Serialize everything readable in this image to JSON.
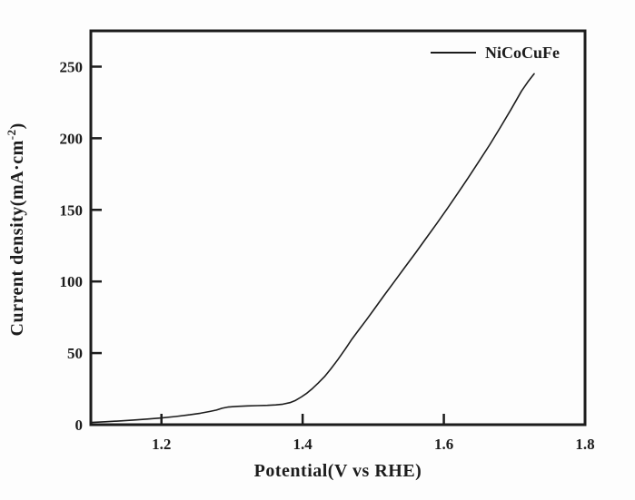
{
  "figure": {
    "background": "#fdfdfd",
    "ink_color": "#1c1c1c"
  },
  "chart_data": {
    "type": "line",
    "title": "",
    "xlabel": "Potential(V vs RHE)",
    "ylabel": "Current density(mA·cm⁻²)",
    "ylabel_parts": {
      "pre": "Current density(mA·cm",
      "sup": "-2",
      "post": ")"
    },
    "xlim": [
      1.1,
      1.8
    ],
    "ylim": [
      0,
      275
    ],
    "xticks": [
      1.2,
      1.4,
      1.6,
      1.8
    ],
    "xtick_labels": [
      "1.2",
      "1.4",
      "1.6",
      "1.8"
    ],
    "yticks": [
      0,
      50,
      100,
      150,
      200,
      250
    ],
    "ytick_labels": [
      "0",
      "50",
      "100",
      "150",
      "200",
      "250"
    ],
    "grid": false,
    "frame": "full-box",
    "tick_direction": "in",
    "legend": {
      "position": "top-right",
      "entries": [
        {
          "label": "NiCoCuFe",
          "color": "#1c1c1c"
        }
      ]
    },
    "series": [
      {
        "name": "NiCoCuFe",
        "color": "#1c1c1c",
        "line_width": 1.6,
        "points": [
          [
            1.1,
            1.5
          ],
          [
            1.12,
            2.0
          ],
          [
            1.14,
            2.6
          ],
          [
            1.16,
            3.2
          ],
          [
            1.18,
            3.9
          ],
          [
            1.2,
            4.7
          ],
          [
            1.22,
            5.7
          ],
          [
            1.24,
            6.9
          ],
          [
            1.255,
            8.0
          ],
          [
            1.268,
            9.2
          ],
          [
            1.278,
            10.2
          ],
          [
            1.286,
            11.5
          ],
          [
            1.294,
            12.3
          ],
          [
            1.308,
            12.8
          ],
          [
            1.322,
            13.1
          ],
          [
            1.336,
            13.3
          ],
          [
            1.35,
            13.5
          ],
          [
            1.362,
            13.8
          ],
          [
            1.372,
            14.3
          ],
          [
            1.382,
            15.4
          ],
          [
            1.39,
            17.0
          ],
          [
            1.398,
            19.3
          ],
          [
            1.406,
            22.0
          ],
          [
            1.414,
            25.3
          ],
          [
            1.422,
            29.0
          ],
          [
            1.431,
            33.5
          ],
          [
            1.44,
            39.0
          ],
          [
            1.45,
            45.5
          ],
          [
            1.46,
            52.5
          ],
          [
            1.47,
            59.8
          ],
          [
            1.48,
            66.5
          ],
          [
            1.49,
            73.0
          ],
          [
            1.5,
            79.8
          ],
          [
            1.515,
            90.0
          ],
          [
            1.53,
            100.0
          ],
          [
            1.545,
            110.0
          ],
          [
            1.56,
            120.0
          ],
          [
            1.575,
            130.2
          ],
          [
            1.59,
            140.5
          ],
          [
            1.605,
            151.0
          ],
          [
            1.62,
            161.8
          ],
          [
            1.635,
            172.8
          ],
          [
            1.65,
            184.0
          ],
          [
            1.665,
            195.5
          ],
          [
            1.68,
            207.5
          ],
          [
            1.695,
            220.0
          ],
          [
            1.71,
            233.0
          ],
          [
            1.72,
            240.0
          ],
          [
            1.728,
            245.0
          ]
        ]
      }
    ]
  }
}
